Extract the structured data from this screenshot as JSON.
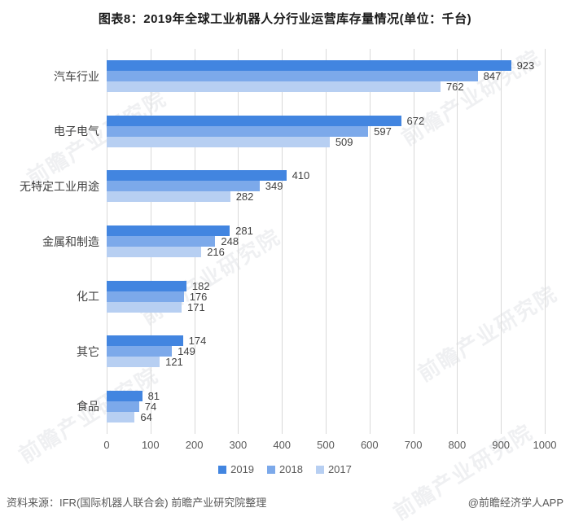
{
  "title": "图表8：2019年全球工业机器人分行业运营库存量情况(单位：千台)",
  "chart_data": {
    "type": "bar",
    "orientation": "horizontal",
    "title": "图表8：2019年全球工业机器人分行业运营库存量情况(单位：千台)",
    "unit": "千台",
    "categories": [
      "汽车行业",
      "电子电气",
      "无特定工业用途",
      "金属和制造",
      "化工",
      "其它",
      "食品"
    ],
    "series": [
      {
        "name": "2019",
        "color": "#4285e0",
        "values": [
          923,
          672,
          410,
          281,
          182,
          174,
          81
        ]
      },
      {
        "name": "2018",
        "color": "#7ca9ea",
        "values": [
          847,
          597,
          349,
          248,
          176,
          149,
          74
        ]
      },
      {
        "name": "2017",
        "color": "#b7cff2",
        "values": [
          762,
          509,
          282,
          216,
          171,
          121,
          64
        ]
      }
    ],
    "xlim": [
      0,
      1000
    ],
    "xticks": [
      "0",
      "100",
      "200",
      "300",
      "400",
      "500",
      "600",
      "700",
      "800",
      "900",
      "1000"
    ],
    "grid": "vertical",
    "gridline_color": "#d9d9d9",
    "legend_position": "bottom-center",
    "legend_entries": [
      "2019",
      "2018",
      "2017"
    ]
  },
  "footer": {
    "source": "资料来源：IFR(国际机器人联合会) 前瞻产业研究院整理",
    "credit": "@前瞻经济学人APP"
  },
  "watermark": {
    "text": "前瞻产业研究院"
  }
}
